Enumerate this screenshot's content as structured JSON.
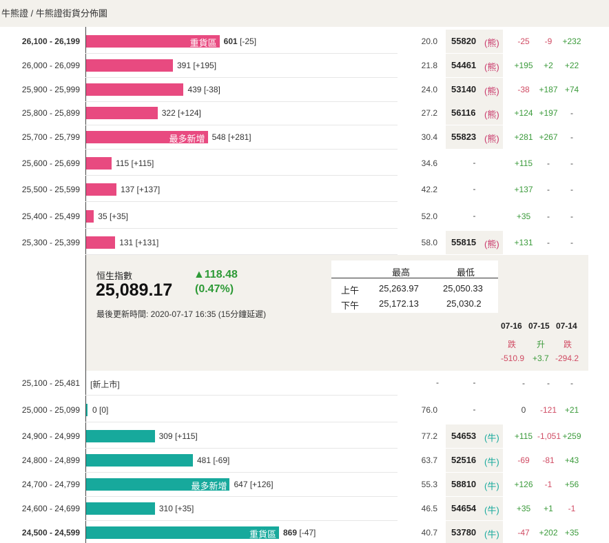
{
  "breadcrumb": "牛熊證 / 牛熊證街貨分佈圖",
  "type_labels": {
    "bear": "熊",
    "bull": "牛"
  },
  "tags": {
    "heaviest": "重貨區",
    "most_new": "最多新增"
  },
  "new_listing": "[新上市]",
  "bear_rows": [
    {
      "range": "26,100 - 26,199",
      "qty": "601",
      "delta": "[-25]",
      "tag": "重貨區",
      "bold": true,
      "pct": "20.0",
      "code": "55820",
      "c1": "-25",
      "c2": "-9",
      "c3": "+232"
    },
    {
      "range": "26,000 - 26,099",
      "qty": "391",
      "delta": "[+195]",
      "tag": "",
      "bold": false,
      "pct": "21.8",
      "code": "54461",
      "c1": "+195",
      "c2": "+2",
      "c3": "+22"
    },
    {
      "range": "25,900 - 25,999",
      "qty": "439",
      "delta": "[-38]",
      "tag": "",
      "bold": false,
      "pct": "24.0",
      "code": "53140",
      "c1": "-38",
      "c2": "+187",
      "c3": "+74"
    },
    {
      "range": "25,800 - 25,899",
      "qty": "322",
      "delta": "[+124]",
      "tag": "",
      "bold": false,
      "pct": "27.2",
      "code": "56116",
      "c1": "+124",
      "c2": "+197",
      "c3": "-"
    },
    {
      "range": "25,700 - 25,799",
      "qty": "548",
      "delta": "[+281]",
      "tag": "最多新增",
      "bold": false,
      "pct": "30.4",
      "code": "55823",
      "c1": "+281",
      "c2": "+267",
      "c3": "-"
    },
    {
      "range": "25,600 - 25,699",
      "qty": "115",
      "delta": "[+115]",
      "tag": "",
      "bold": false,
      "pct": "34.6",
      "code": "-",
      "c1": "+115",
      "c2": "-",
      "c3": "-"
    },
    {
      "range": "25,500 - 25,599",
      "qty": "137",
      "delta": "[+137]",
      "tag": "",
      "bold": false,
      "pct": "42.2",
      "code": "-",
      "c1": "+137",
      "c2": "-",
      "c3": "-"
    },
    {
      "range": "25,400 - 25,499",
      "qty": "35",
      "delta": "[+35]",
      "tag": "",
      "bold": false,
      "pct": "52.0",
      "code": "-",
      "c1": "+35",
      "c2": "-",
      "c3": "-"
    },
    {
      "range": "25,300 - 25,399",
      "qty": "131",
      "delta": "[+131]",
      "tag": "",
      "bold": false,
      "pct": "58.0",
      "code": "55815",
      "c1": "+131",
      "c2": "-",
      "c3": "-"
    }
  ],
  "index": {
    "name": "恒生指數",
    "value": "25,089.17",
    "change": "▲118.48",
    "change_pct": "(0.47%)",
    "updated": "最後更新時間: 2020-07-17 16:35 (15分鐘延遲)",
    "hl_headers": {
      "high": "最高",
      "low": "最低"
    },
    "sessions": [
      {
        "label": "上午",
        "high": "25,263.97",
        "low": "25,050.33"
      },
      {
        "label": "下午",
        "high": "25,172.13",
        "low": "25,030.2"
      }
    ],
    "history": [
      {
        "date": "07-16",
        "trend": "跌",
        "change": "-510.9"
      },
      {
        "date": "07-15",
        "trend": "升",
        "change": "+3.7"
      },
      {
        "date": "07-14",
        "trend": "跌",
        "change": "-294.2"
      }
    ]
  },
  "bull_rows": [
    {
      "range": "25,100 - 25,481",
      "new": true,
      "pct": "-",
      "code": "-",
      "c1": "-",
      "c2": "-",
      "c3": "-"
    },
    {
      "range": "25,000 - 25,099",
      "qty": "0",
      "delta": "[0]",
      "tag": "",
      "bold": false,
      "pct": "76.0",
      "code": "-",
      "c1": "0",
      "c2": "-121",
      "c3": "+21"
    },
    {
      "range": "24,900 - 24,999",
      "qty": "309",
      "delta": "[+115]",
      "tag": "",
      "bold": false,
      "pct": "77.2",
      "code": "54653",
      "c1": "+115",
      "c2": "-1,051",
      "c3": "+259"
    },
    {
      "range": "24,800 - 24,899",
      "qty": "481",
      "delta": "[-69]",
      "tag": "",
      "bold": false,
      "pct": "63.7",
      "code": "52516",
      "c1": "-69",
      "c2": "-81",
      "c3": "+43"
    },
    {
      "range": "24,700 - 24,799",
      "qty": "647",
      "delta": "[+126]",
      "tag": "最多新增",
      "bold": false,
      "pct": "55.3",
      "code": "58810",
      "c1": "+126",
      "c2": "-1",
      "c3": "+56"
    },
    {
      "range": "24,600 - 24,699",
      "qty": "310",
      "delta": "[+35]",
      "tag": "",
      "bold": false,
      "pct": "46.5",
      "code": "54654",
      "c1": "+35",
      "c2": "+1",
      "c3": "-1"
    },
    {
      "range": "24,500 - 24,599",
      "qty": "869",
      "delta": "[-47]",
      "tag": "重貨區",
      "bold": true,
      "pct": "40.7",
      "code": "53780",
      "c1": "-47",
      "c2": "+202",
      "c3": "+35"
    }
  ],
  "colors": {
    "bear": "#e84a80",
    "bull": "#17a99c",
    "up": "#3a9a3a",
    "down": "#d04b63",
    "panel": "#f3f1ec"
  }
}
